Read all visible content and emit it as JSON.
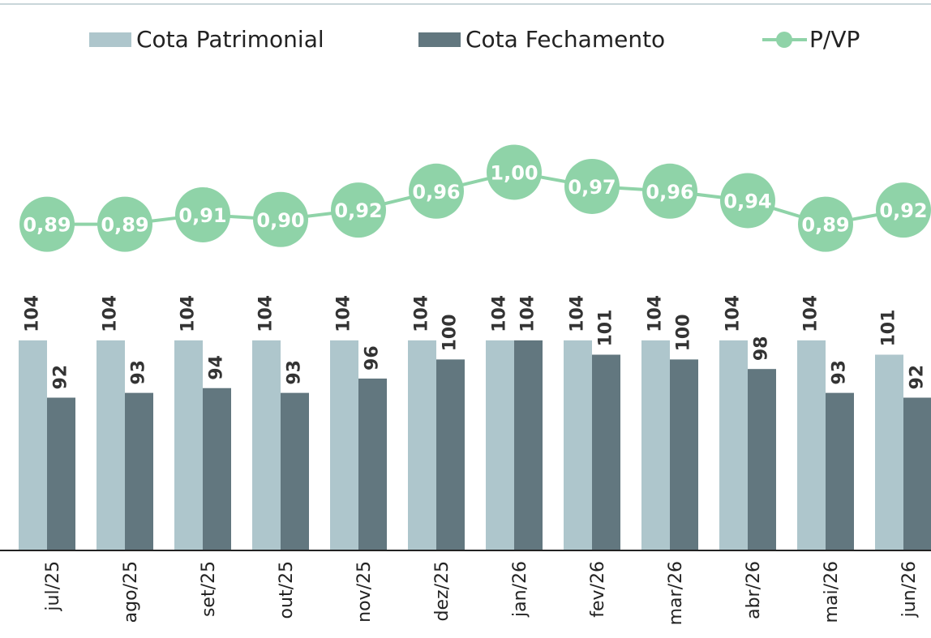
{
  "chart_data": {
    "type": "bar",
    "categories": [
      "jul/25",
      "ago/25",
      "set/25",
      "out/25",
      "nov/25",
      "dez/25",
      "jan/26",
      "fev/26",
      "mar/26",
      "abr/26",
      "mai/26",
      "jun/26"
    ],
    "series": [
      {
        "name": "Cota Patrimonial",
        "type": "bar",
        "color": "#aec6cc",
        "values": [
          104,
          104,
          104,
          104,
          104,
          104,
          104,
          104,
          104,
          104,
          104,
          101
        ]
      },
      {
        "name": "Cota Fechamento",
        "type": "bar",
        "color": "#62777f",
        "values": [
          92,
          93,
          94,
          93,
          96,
          100,
          104,
          101,
          100,
          98,
          93,
          92
        ]
      },
      {
        "name": "P/VP",
        "type": "line",
        "axis": "y2",
        "color": "#8fd3a8",
        "values": [
          0.89,
          0.89,
          0.91,
          0.9,
          0.92,
          0.96,
          1.0,
          0.97,
          0.96,
          0.94,
          0.89,
          0.92
        ],
        "value_labels": [
          "0,89",
          "0,89",
          "0,91",
          "0,90",
          "0,92",
          "0,96",
          "1,00",
          "0,97",
          "0,96",
          "0,94",
          "0,89",
          "0,92"
        ]
      }
    ],
    "ylim": [
      60,
      160
    ],
    "y2lim": [
      0.2,
      1.21
    ],
    "legend": "top"
  }
}
